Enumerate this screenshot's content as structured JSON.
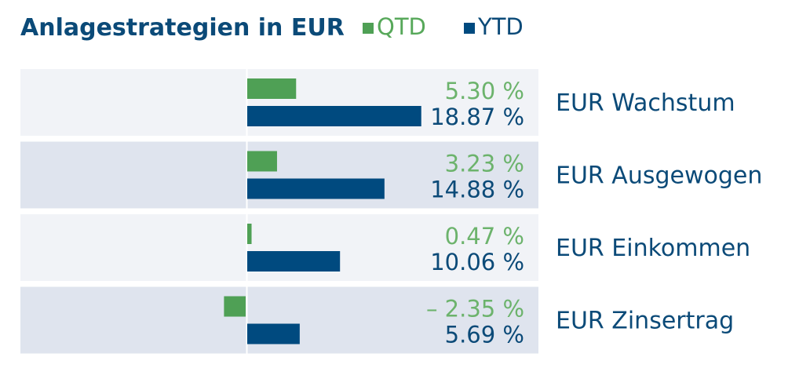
{
  "chart_data": {
    "type": "bar",
    "orientation": "horizontal",
    "title": "Anlagestrategien in EUR",
    "categories": [
      "EUR Wachstum",
      "EUR Ausgewogen",
      "EUR Einkommen",
      "EUR Zinsertrag"
    ],
    "series": [
      {
        "name": "QTD",
        "color": "#4fa055",
        "values": [
          5.3,
          3.23,
          0.47,
          -2.35
        ],
        "labels": [
          "5.30 %",
          "3.23 %",
          "0.47 %",
          "– 2.35 %"
        ]
      },
      {
        "name": "YTD",
        "color": "#004a7f",
        "values": [
          18.87,
          14.88,
          10.06,
          5.69
        ],
        "labels": [
          "18.87 %",
          "14.88 %",
          "10.06 %",
          "5.69 %"
        ]
      }
    ],
    "legend_position": "top",
    "grid": false,
    "label_colors": {
      "QTD": "#6cb36c",
      "YTD": "#0b4a78"
    },
    "row_backgrounds": [
      "#f1f3f7",
      "#dfe4ee"
    ]
  }
}
